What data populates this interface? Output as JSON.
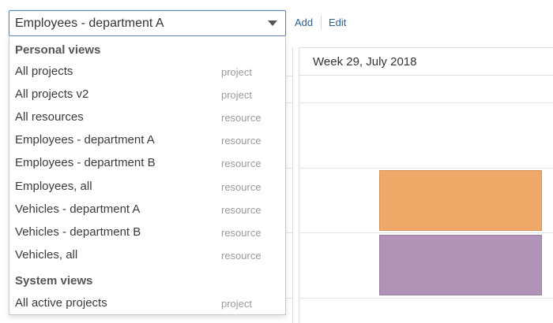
{
  "view_select": {
    "value": "Employees - department A"
  },
  "toolbar": {
    "add_label": "Add",
    "edit_label": "Edit"
  },
  "dropdown": {
    "groups": [
      {
        "label": "Personal views",
        "options": [
          {
            "label": "All projects",
            "type": "project"
          },
          {
            "label": "All projects v2",
            "type": "project"
          },
          {
            "label": "All resources",
            "type": "resource"
          },
          {
            "label": "Employees - department A",
            "type": "resource"
          },
          {
            "label": "Employees - department B",
            "type": "resource"
          },
          {
            "label": "Employees, all",
            "type": "resource"
          },
          {
            "label": "Vehicles - department A",
            "type": "resource"
          },
          {
            "label": "Vehicles - department B",
            "type": "resource"
          },
          {
            "label": "Vehicles, all",
            "type": "resource"
          }
        ]
      },
      {
        "label": "System views",
        "options": [
          {
            "label": "All active projects",
            "type": "project"
          }
        ]
      }
    ]
  },
  "scheduler": {
    "week_label": "Week 29, July 2018",
    "events": [
      {
        "name": "event-orange",
        "color": "#f0a868"
      },
      {
        "name": "event-purple",
        "color": "#b193b8"
      }
    ]
  }
}
